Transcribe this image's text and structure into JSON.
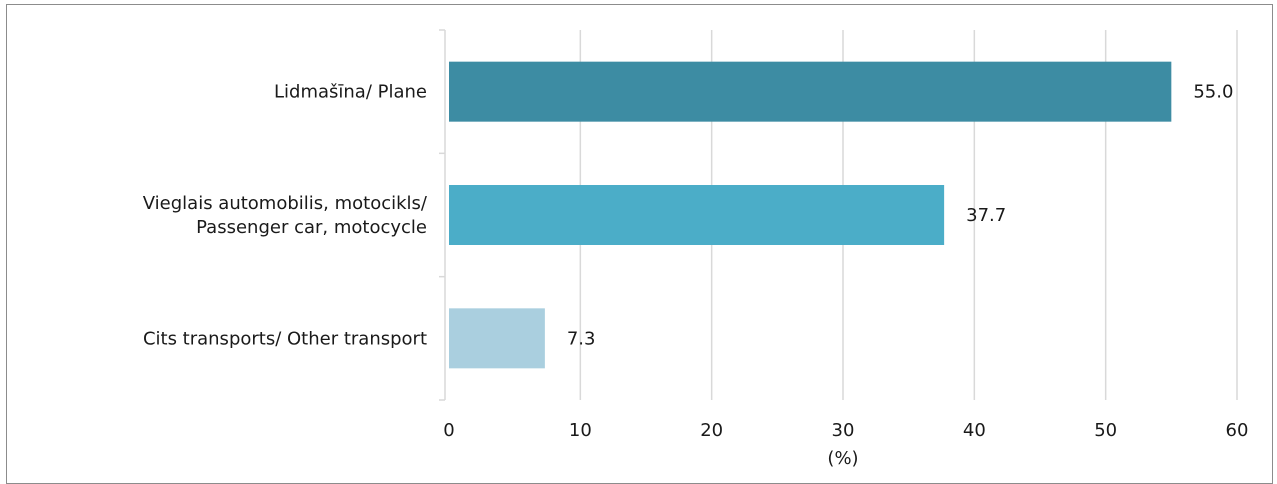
{
  "chart_data": {
    "type": "bar",
    "orientation": "horizontal",
    "categories": [
      [
        "Lidmašīna/ Plane"
      ],
      [
        "Vieglais automobilis, motocikls/",
        "Passenger car, motocycle"
      ],
      [
        "Cits transports/ Other transport"
      ]
    ],
    "values": [
      55.0,
      37.7,
      7.3
    ],
    "value_labels": [
      "55.0",
      "37.7",
      "7.3"
    ],
    "bar_colors": [
      "#3d8ca3",
      "#4badc8",
      "#aacfdf"
    ],
    "xlabel": "(%)",
    "xlim": [
      0,
      60
    ],
    "xticks": [
      0,
      10,
      20,
      30,
      40,
      50,
      60
    ],
    "xtick_labels": [
      "0",
      "10",
      "20",
      "30",
      "40",
      "50",
      "60"
    ],
    "grid": "vertical",
    "gridline_color": "#d9d9d9"
  }
}
